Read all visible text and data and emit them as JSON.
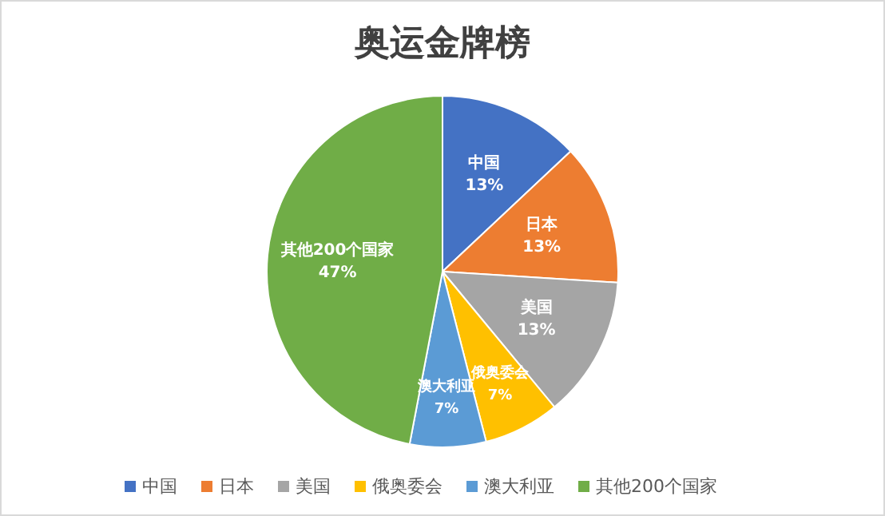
{
  "chart_data": {
    "type": "pie",
    "title": "奥运金牌榜",
    "categories": [
      "中国",
      "日本",
      "美国",
      "俄奥委会",
      "澳大利亚",
      "其他200个国家"
    ],
    "values": [
      13,
      13,
      13,
      7,
      7,
      47
    ],
    "colors": [
      "#4472c4",
      "#ed7d31",
      "#a5a5a5",
      "#ffc000",
      "#5b9bd5",
      "#70ad47"
    ],
    "value_labels": [
      "13%",
      "13%",
      "13%",
      "7%",
      "7%",
      "47%"
    ],
    "legend": "bottom"
  }
}
